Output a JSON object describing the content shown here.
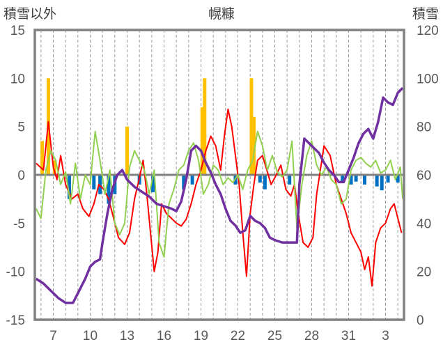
{
  "chart_data": {
    "type": "line",
    "title": "幌糠",
    "left_axis_label": "積雪以外",
    "right_axis_label": "積雪",
    "x_tick_labels": [
      "7",
      "10",
      "13",
      "16",
      "19",
      "22",
      "25",
      "28",
      "31",
      "3"
    ],
    "x_tick_days": [
      7,
      10,
      13,
      16,
      19,
      22,
      25,
      28,
      31,
      34
    ],
    "xlim": [
      5.5,
      35.5
    ],
    "left_ylim": [
      -15,
      15
    ],
    "left_yticks": [
      -15,
      -10,
      -5,
      0,
      5,
      10,
      15
    ],
    "right_ylim": [
      0,
      120
    ],
    "right_yticks": [
      0,
      20,
      40,
      60,
      80,
      100,
      120
    ],
    "grid": "vertical dashed lines at day boundaries",
    "colors": {
      "red": "#ff0000",
      "green": "#92d050",
      "orange_bars": "#ffc000",
      "blue_bars": "#0070c0",
      "purple": "#7030a0",
      "frame": "#808080"
    },
    "series": [
      {
        "axis": "left",
        "style": "line",
        "color": "#ff0000",
        "points": [
          [
            5.6,
            1.2
          ],
          [
            6.2,
            0.5
          ],
          [
            6.6,
            5.5
          ],
          [
            7.0,
            0.8
          ],
          [
            7.3,
            -0.5
          ],
          [
            7.6,
            2
          ],
          [
            8.0,
            -1
          ],
          [
            8.5,
            -2.5
          ],
          [
            9.0,
            -2.0
          ],
          [
            9.4,
            -3.5
          ],
          [
            9.9,
            -4.3
          ],
          [
            10.3,
            -3
          ],
          [
            10.7,
            -1
          ],
          [
            11.1,
            -1.5
          ],
          [
            11.5,
            -2.5
          ],
          [
            11.9,
            -4.5
          ],
          [
            12.3,
            -6.5
          ],
          [
            12.8,
            -7.2
          ],
          [
            13.2,
            -6.0
          ],
          [
            13.6,
            -2.5
          ],
          [
            14.0,
            -0.3
          ],
          [
            14.3,
            1.5
          ],
          [
            14.6,
            -2
          ],
          [
            14.9,
            -6
          ],
          [
            15.2,
            -10
          ],
          [
            15.5,
            -8
          ],
          [
            15.8,
            -3
          ],
          [
            16.2,
            -4
          ],
          [
            16.6,
            -4.5
          ],
          [
            17.0,
            -5
          ],
          [
            17.4,
            -5.3
          ],
          [
            17.8,
            -4.6
          ],
          [
            18.2,
            -3
          ],
          [
            18.6,
            -1
          ],
          [
            19.0,
            0.5
          ],
          [
            19.4,
            2.5
          ],
          [
            19.8,
            4
          ],
          [
            20.2,
            3
          ],
          [
            20.6,
            0.5
          ],
          [
            20.9,
            4
          ],
          [
            21.2,
            6.8
          ],
          [
            21.5,
            5
          ],
          [
            21.8,
            2
          ],
          [
            22.1,
            -1
          ],
          [
            22.4,
            -6
          ],
          [
            22.7,
            -10.5
          ],
          [
            23.0,
            -4
          ],
          [
            23.3,
            -1
          ],
          [
            23.6,
            1.5
          ],
          [
            24.0,
            2
          ],
          [
            24.4,
            0.3
          ],
          [
            24.7,
            -1
          ],
          [
            25.0,
            -0.3
          ],
          [
            25.5,
            1
          ],
          [
            25.9,
            -1.5
          ],
          [
            26.3,
            -2.2
          ],
          [
            26.6,
            -1
          ],
          [
            26.9,
            -4
          ],
          [
            27.3,
            -7
          ],
          [
            27.7,
            -7.5
          ],
          [
            28.1,
            -6.5
          ],
          [
            28.4,
            -2
          ],
          [
            28.7,
            0.5
          ],
          [
            29.0,
            3
          ],
          [
            29.5,
            2
          ],
          [
            30.0,
            -1
          ],
          [
            30.4,
            -2.5
          ],
          [
            30.8,
            -4
          ],
          [
            31.2,
            -6
          ],
          [
            31.6,
            -7
          ],
          [
            32.0,
            -8
          ],
          [
            32.3,
            -9.8
          ],
          [
            32.6,
            -8.5
          ],
          [
            32.9,
            -11.5
          ],
          [
            33.2,
            -7
          ],
          [
            33.6,
            -5.5
          ],
          [
            34.0,
            -5.0
          ],
          [
            34.4,
            -3.5
          ],
          [
            34.7,
            -3
          ],
          [
            35.0,
            -4.5
          ],
          [
            35.3,
            -6
          ]
        ]
      },
      {
        "axis": "left",
        "style": "line",
        "color": "#92d050",
        "points": [
          [
            5.6,
            -3.5
          ],
          [
            6.0,
            -4.5
          ],
          [
            6.4,
            0.5
          ],
          [
            6.8,
            2.5
          ],
          [
            7.2,
            1.5
          ],
          [
            7.6,
            -1
          ],
          [
            8.0,
            0.3
          ],
          [
            8.4,
            -3
          ],
          [
            8.8,
            1.2
          ],
          [
            9.2,
            -2.5
          ],
          [
            9.6,
            0
          ],
          [
            10.0,
            -1
          ],
          [
            10.4,
            4.5
          ],
          [
            10.8,
            1.5
          ],
          [
            11.2,
            -2
          ],
          [
            11.6,
            0.5
          ],
          [
            12.0,
            -5
          ],
          [
            12.4,
            -6.2
          ],
          [
            12.8,
            -5
          ],
          [
            13.2,
            0.8
          ],
          [
            13.6,
            2.5
          ],
          [
            14.0,
            1.5
          ],
          [
            14.4,
            0.5
          ],
          [
            14.8,
            -2
          ],
          [
            15.2,
            0.5
          ],
          [
            15.6,
            -7
          ],
          [
            16.0,
            -8.5
          ],
          [
            16.4,
            -3
          ],
          [
            16.8,
            -1.5
          ],
          [
            17.2,
            0.5
          ],
          [
            17.6,
            1
          ],
          [
            18.0,
            2.5
          ],
          [
            18.4,
            3.3
          ],
          [
            18.8,
            1.5
          ],
          [
            19.2,
            -2
          ],
          [
            19.6,
            -1
          ],
          [
            20.0,
            1
          ],
          [
            20.4,
            0.5
          ],
          [
            20.8,
            -1
          ],
          [
            21.2,
            -0.3
          ],
          [
            21.6,
            -0.8
          ],
          [
            22.0,
            0
          ],
          [
            22.4,
            -1.5
          ],
          [
            22.8,
            0.5
          ],
          [
            23.2,
            1.5
          ],
          [
            23.6,
            4.5
          ],
          [
            24.0,
            3
          ],
          [
            24.4,
            0.5
          ],
          [
            24.8,
            2
          ],
          [
            25.2,
            0.3
          ],
          [
            25.6,
            -0.2
          ],
          [
            26.0,
            0.5
          ],
          [
            26.4,
            3.5
          ],
          [
            26.8,
            -5.5
          ],
          [
            27.2,
            -1
          ],
          [
            27.6,
            2
          ],
          [
            28.0,
            3.5
          ],
          [
            28.4,
            1
          ],
          [
            28.8,
            0
          ],
          [
            29.2,
            0.8
          ],
          [
            29.6,
            -0.5
          ],
          [
            30.0,
            -1
          ],
          [
            30.4,
            -3
          ],
          [
            30.8,
            -2.5
          ],
          [
            31.2,
            0.5
          ],
          [
            31.6,
            1.5
          ],
          [
            32.0,
            1.8
          ],
          [
            32.4,
            1.2
          ],
          [
            32.8,
            0.8
          ],
          [
            33.2,
            1.5
          ],
          [
            33.6,
            0.2
          ],
          [
            34.0,
            0.5
          ],
          [
            34.4,
            1.5
          ],
          [
            34.8,
            -0.5
          ],
          [
            35.2,
            0.8
          ],
          [
            35.4,
            -2.5
          ]
        ]
      },
      {
        "axis": "right",
        "style": "line",
        "color": "#7030a0",
        "points": [
          [
            5.6,
            17
          ],
          [
            6.2,
            15
          ],
          [
            6.8,
            12
          ],
          [
            7.4,
            9
          ],
          [
            8.0,
            7
          ],
          [
            8.6,
            7
          ],
          [
            9.2,
            13
          ],
          [
            9.6,
            17
          ],
          [
            10.0,
            22
          ],
          [
            10.4,
            24
          ],
          [
            10.8,
            25
          ],
          [
            11.0,
            32
          ],
          [
            11.4,
            44
          ],
          [
            11.8,
            54
          ],
          [
            12.2,
            60
          ],
          [
            12.6,
            62
          ],
          [
            13.0,
            58
          ],
          [
            13.6,
            55
          ],
          [
            14.2,
            53
          ],
          [
            14.8,
            51
          ],
          [
            15.4,
            48
          ],
          [
            16.0,
            47
          ],
          [
            16.6,
            46
          ],
          [
            17.0,
            45
          ],
          [
            17.4,
            49
          ],
          [
            17.8,
            58
          ],
          [
            18.2,
            70
          ],
          [
            18.6,
            72
          ],
          [
            19.0,
            70
          ],
          [
            19.4,
            65
          ],
          [
            19.8,
            61
          ],
          [
            20.2,
            56
          ],
          [
            20.6,
            52
          ],
          [
            21.0,
            46
          ],
          [
            21.4,
            41
          ],
          [
            21.8,
            39
          ],
          [
            22.2,
            36
          ],
          [
            22.6,
            37
          ],
          [
            23.0,
            43
          ],
          [
            23.4,
            41
          ],
          [
            23.8,
            40
          ],
          [
            24.2,
            38
          ],
          [
            24.6,
            34
          ],
          [
            25.0,
            33
          ],
          [
            25.6,
            32
          ],
          [
            26.2,
            32
          ],
          [
            26.8,
            32
          ],
          [
            27.0,
            56
          ],
          [
            27.4,
            75
          ],
          [
            27.8,
            73
          ],
          [
            28.2,
            71
          ],
          [
            28.6,
            69
          ],
          [
            29.0,
            65
          ],
          [
            29.4,
            62
          ],
          [
            29.8,
            60
          ],
          [
            30.2,
            57
          ],
          [
            30.6,
            57
          ],
          [
            31.0,
            62
          ],
          [
            31.4,
            67
          ],
          [
            31.8,
            73
          ],
          [
            32.2,
            77
          ],
          [
            32.6,
            79
          ],
          [
            33.0,
            75
          ],
          [
            33.4,
            82
          ],
          [
            33.8,
            92
          ],
          [
            34.2,
            90
          ],
          [
            34.6,
            89
          ],
          [
            35.0,
            94
          ],
          [
            35.4,
            96
          ]
        ]
      },
      {
        "axis": "left",
        "style": "bar",
        "color": "#ffc000",
        "bars": [
          [
            6.1,
            3.5
          ],
          [
            6.6,
            10.0
          ],
          [
            7.1,
            1.5
          ],
          [
            13.0,
            5.0
          ],
          [
            19.1,
            7.0
          ],
          [
            19.3,
            10.0
          ],
          [
            23.1,
            10.0
          ],
          [
            23.3,
            6.0
          ]
        ]
      },
      {
        "axis": "left",
        "style": "bar",
        "color": "#0070c0",
        "bars": [
          [
            8.3,
            -2.5
          ],
          [
            10.3,
            -1.5
          ],
          [
            10.8,
            -2.0
          ],
          [
            11.5,
            -3.0
          ],
          [
            12.0,
            -2.0
          ],
          [
            14.0,
            -1.0
          ],
          [
            15.1,
            -1.8
          ],
          [
            17.6,
            -1.5
          ],
          [
            18.3,
            -1.0
          ],
          [
            21.8,
            -1.0
          ],
          [
            23.8,
            -0.8
          ],
          [
            24.2,
            -1.5
          ],
          [
            26.2,
            -1.0
          ],
          [
            30.5,
            -0.8
          ],
          [
            31.2,
            -1.0
          ],
          [
            31.6,
            -0.7
          ],
          [
            32.3,
            -1.0
          ],
          [
            33.3,
            -1.2
          ],
          [
            33.7,
            -1.6
          ],
          [
            34.2,
            -0.8
          ],
          [
            35.0,
            -0.8
          ]
        ]
      }
    ]
  }
}
